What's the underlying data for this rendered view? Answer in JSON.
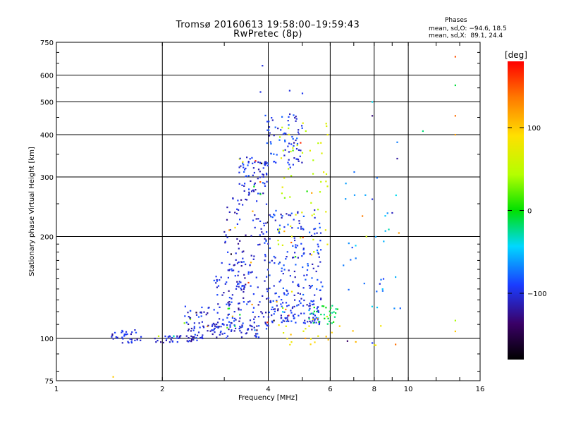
{
  "chart_data": {
    "type": "scatter",
    "title": "Tromsø 20160613 19:58:00–19:59:43",
    "subtitle": "RwPretec (8p)",
    "xlabel": "Frequency [MHz]",
    "ylabel": "Stationary phase Virtual Height [km]",
    "x_scale": "log",
    "y_scale": "log",
    "xlim": [
      1,
      16
    ],
    "ylim": [
      75,
      750
    ],
    "x_ticks": [
      1,
      2,
      4,
      6,
      8,
      10,
      16
    ],
    "x_tick_labels": [
      "1",
      "2",
      "4",
      "6",
      "8",
      "10",
      "16"
    ],
    "y_ticks": [
      75,
      100,
      200,
      300,
      400,
      500,
      600,
      750
    ],
    "y_tick_labels": [
      "75",
      "100",
      "200",
      "300",
      "400",
      "500",
      "600",
      "750"
    ],
    "grid": true,
    "colorbar": {
      "label": "[deg]",
      "range": [
        -180,
        180
      ],
      "ticks": [
        100,
        0,
        -100
      ],
      "tick_labels": [
        "100",
        "0",
        "−100"
      ]
    },
    "phases": {
      "heading": "Phases",
      "o_mode": "mean, sd,O: −94.6, 18.5",
      "x_mode": "mean, sd,X:  89.1, 24.4"
    },
    "clusters": [
      {
        "x": [
          1.4,
          1.75
        ],
        "y": [
          97,
          106
        ],
        "phase": -105,
        "count": 35
      },
      {
        "x": [
          1.9,
          2.6
        ],
        "y": [
          97,
          102
        ],
        "phase": -110,
        "count": 40
      },
      {
        "x": [
          2.4,
          4.0
        ],
        "y": [
          100,
          112
        ],
        "phase": -100,
        "count": 90
      },
      {
        "x": [
          2.3,
          3.4
        ],
        "y": [
          105,
          125
        ],
        "phase": -100,
        "count": 55
      },
      {
        "x": [
          2.8,
          3.6
        ],
        "y": [
          125,
          170
        ],
        "phase": -100,
        "count": 55
      },
      {
        "x": [
          3.0,
          4.0
        ],
        "y": [
          112,
          260
        ],
        "phase": -105,
        "count": 120
      },
      {
        "x": [
          3.3,
          4.0
        ],
        "y": [
          265,
          345
        ],
        "phase": -100,
        "count": 75
      },
      {
        "x": [
          3.9,
          5.0
        ],
        "y": [
          320,
          460
        ],
        "phase": -95,
        "count": 80
      },
      {
        "x": [
          4.0,
          5.6
        ],
        "y": [
          110,
          130
        ],
        "phase": -100,
        "count": 110
      },
      {
        "x": [
          3.9,
          5.7
        ],
        "y": [
          130,
          240
        ],
        "phase": -95,
        "count": 160
      },
      {
        "x": [
          4.2,
          5.9
        ],
        "y": [
          180,
          450
        ],
        "phase": 60,
        "count": 55
      },
      {
        "x": [
          5.2,
          6.3
        ],
        "y": [
          110,
          125
        ],
        "phase": -10,
        "count": 30
      },
      {
        "x": [
          4.0,
          8.5
        ],
        "y": [
          95,
          110
        ],
        "phase": 90,
        "count": 25
      },
      {
        "x": [
          6.5,
          9.5
        ],
        "y": [
          110,
          330
        ],
        "phase": -60,
        "count": 30
      }
    ],
    "points": [
      {
        "x": 3.85,
        "y": 640,
        "phase": -100
      },
      {
        "x": 3.8,
        "y": 535,
        "phase": -100
      },
      {
        "x": 4.6,
        "y": 540,
        "phase": -100
      },
      {
        "x": 5.0,
        "y": 530,
        "phase": -95
      },
      {
        "x": 7.9,
        "y": 500,
        "phase": -40
      },
      {
        "x": 7.9,
        "y": 455,
        "phase": -130
      },
      {
        "x": 9.3,
        "y": 380,
        "phase": -70
      },
      {
        "x": 9.3,
        "y": 340,
        "phase": -120
      },
      {
        "x": 11.0,
        "y": 410,
        "phase": -20
      },
      {
        "x": 13.6,
        "y": 680,
        "phase": 150
      },
      {
        "x": 13.6,
        "y": 560,
        "phase": -10
      },
      {
        "x": 13.6,
        "y": 455,
        "phase": 140
      },
      {
        "x": 13.6,
        "y": 400,
        "phase": 120
      },
      {
        "x": 13.6,
        "y": 113,
        "phase": 40
      },
      {
        "x": 13.6,
        "y": 105,
        "phase": 100
      },
      {
        "x": 9.2,
        "y": 96,
        "phase": 140
      },
      {
        "x": 7.9,
        "y": 97,
        "phase": -90
      },
      {
        "x": 1.45,
        "y": 77,
        "phase": 100
      },
      {
        "x": 3.1,
        "y": 209,
        "phase": 130
      },
      {
        "x": 8.3,
        "y": 145,
        "phase": -100
      },
      {
        "x": 8.5,
        "y": 150,
        "phase": -90
      },
      {
        "x": 7.6,
        "y": 200,
        "phase": 60
      },
      {
        "x": 7.9,
        "y": 258,
        "phase": -100
      },
      {
        "x": 8.8,
        "y": 210,
        "phase": -30
      },
      {
        "x": 9.4,
        "y": 205,
        "phase": 120
      },
      {
        "x": 9.0,
        "y": 235,
        "phase": -110
      }
    ]
  }
}
